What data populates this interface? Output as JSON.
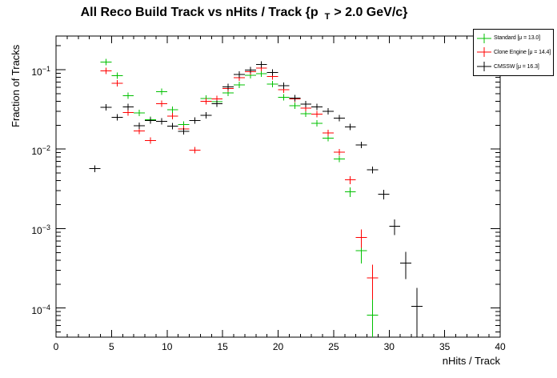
{
  "title": {
    "prefix": "All Reco Build Track vs nHits / Track {p",
    "subscript": "T",
    "suffix": "> 2.0 GeV/c}"
  },
  "legend": {
    "entries": [
      {
        "label": "Standard  [μ = 13.0]",
        "color": "#00c000"
      },
      {
        "label": "Clone Engine  [μ = 14.4]",
        "color": "#ff0000"
      },
      {
        "label": "CMSSW  [μ = 16.3]",
        "color": "#000000"
      }
    ],
    "position": "top-right"
  },
  "chart_data": {
    "type": "scatter",
    "title": "All Reco Build Track vs nHits / Track {p_T > 2.0 GeV/c}",
    "xlabel": "nHits / Track",
    "ylabel": "Fraction of Tracks",
    "x_scale": "linear",
    "y_scale": "log",
    "xlim": [
      0,
      40
    ],
    "ylim": [
      4.3e-05,
      0.265
    ],
    "x_ticks": [
      0,
      5,
      10,
      15,
      20,
      25,
      30,
      35,
      40
    ],
    "x_minor_step": 1,
    "y_tick_exponents": [
      -1,
      -2,
      -3,
      -4
    ],
    "grid": false,
    "bin_width": 1.0,
    "n_tracks_for_errors": 19000,
    "series": [
      {
        "name": "Standard",
        "mu": 13.0,
        "color": "#00c000",
        "points": [
          [
            4.5,
            0.124
          ],
          [
            5.5,
            0.084
          ],
          [
            6.5,
            0.047
          ],
          [
            7.5,
            0.0286
          ],
          [
            8.5,
            0.0235
          ],
          [
            9.5,
            0.053
          ],
          [
            10.5,
            0.0314
          ],
          [
            11.5,
            0.0205
          ],
          [
            12.5,
            0.023
          ],
          [
            13.5,
            0.0436
          ],
          [
            14.5,
            0.0395
          ],
          [
            15.5,
            0.051
          ],
          [
            16.5,
            0.064
          ],
          [
            17.5,
            0.085
          ],
          [
            18.5,
            0.089
          ],
          [
            19.5,
            0.066
          ],
          [
            20.5,
            0.045
          ],
          [
            21.5,
            0.035
          ],
          [
            22.5,
            0.028
          ],
          [
            23.5,
            0.021
          ],
          [
            24.5,
            0.0138
          ],
          [
            25.5,
            0.0075
          ],
          [
            26.5,
            0.0029
          ],
          [
            27.5,
            0.00053
          ],
          [
            28.5,
            8.1e-05
          ]
        ]
      },
      {
        "name": "Clone Engine",
        "mu": 14.4,
        "color": "#ff0000",
        "points": [
          [
            4.5,
            0.097
          ],
          [
            5.5,
            0.067
          ],
          [
            6.5,
            0.029
          ],
          [
            7.5,
            0.017
          ],
          [
            8.5,
            0.0128
          ],
          [
            9.5,
            0.0375
          ],
          [
            10.5,
            0.026
          ],
          [
            11.5,
            0.018
          ],
          [
            12.5,
            0.0097
          ],
          [
            13.5,
            0.04
          ],
          [
            14.5,
            0.0427
          ],
          [
            15.5,
            0.058
          ],
          [
            16.5,
            0.079
          ],
          [
            17.5,
            0.094
          ],
          [
            18.5,
            0.105
          ],
          [
            19.5,
            0.082
          ],
          [
            20.5,
            0.056
          ],
          [
            21.5,
            0.043
          ],
          [
            22.5,
            0.033
          ],
          [
            23.5,
            0.0275
          ],
          [
            24.5,
            0.016
          ],
          [
            25.5,
            0.0092
          ],
          [
            26.5,
            0.0041
          ],
          [
            27.5,
            0.00077
          ],
          [
            28.5,
            0.00024
          ]
        ]
      },
      {
        "name": "CMSSW",
        "mu": 16.3,
        "color": "#000000",
        "points": [
          [
            3.5,
            0.0057
          ],
          [
            4.5,
            0.0336
          ],
          [
            5.5,
            0.025
          ],
          [
            6.5,
            0.034
          ],
          [
            7.5,
            0.0196
          ],
          [
            8.5,
            0.023
          ],
          [
            9.5,
            0.0225
          ],
          [
            10.5,
            0.0195
          ],
          [
            11.5,
            0.0168
          ],
          [
            12.5,
            0.023
          ],
          [
            13.5,
            0.0267
          ],
          [
            14.5,
            0.0375
          ],
          [
            15.5,
            0.061
          ],
          [
            16.5,
            0.087
          ],
          [
            17.5,
            0.099
          ],
          [
            18.5,
            0.116
          ],
          [
            19.5,
            0.092
          ],
          [
            20.5,
            0.063
          ],
          [
            21.5,
            0.044
          ],
          [
            22.5,
            0.037
          ],
          [
            23.5,
            0.034
          ],
          [
            24.5,
            0.03
          ],
          [
            25.5,
            0.0245
          ],
          [
            26.5,
            0.019
          ],
          [
            27.5,
            0.0113
          ],
          [
            28.5,
            0.0055
          ],
          [
            29.5,
            0.0027
          ],
          [
            30.5,
            0.00107
          ],
          [
            31.5,
            0.00037
          ],
          [
            32.5,
            0.000105
          ]
        ]
      }
    ]
  }
}
